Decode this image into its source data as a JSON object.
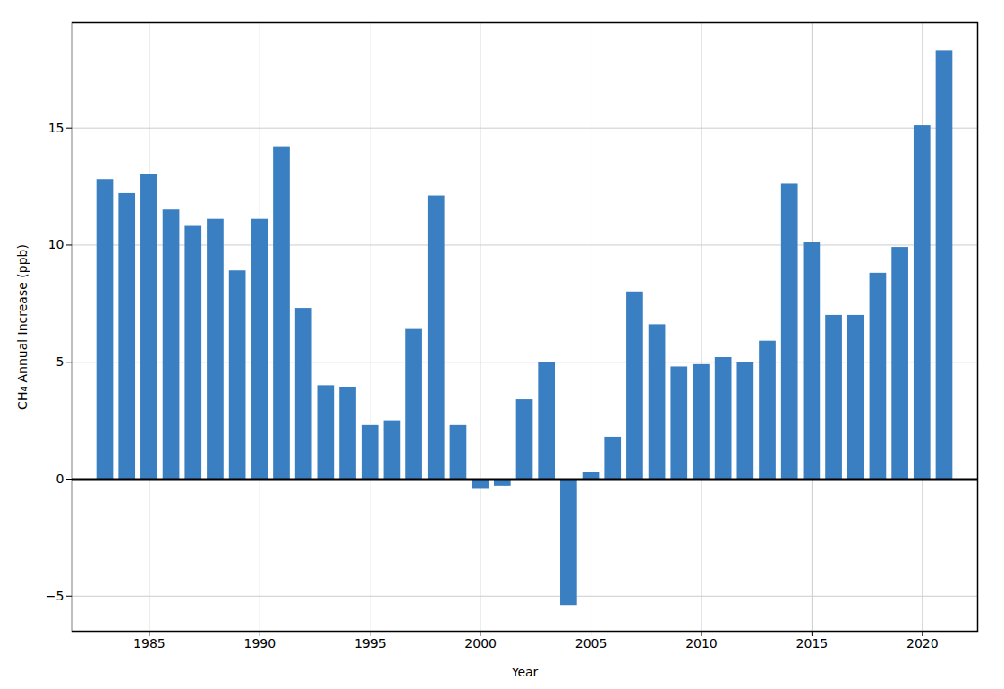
{
  "chart_data": {
    "type": "bar",
    "x": [
      1983,
      1984,
      1985,
      1986,
      1987,
      1988,
      1989,
      1990,
      1991,
      1992,
      1993,
      1994,
      1995,
      1996,
      1997,
      1998,
      1999,
      2000,
      2001,
      2002,
      2003,
      2004,
      2005,
      2006,
      2007,
      2008,
      2009,
      2010,
      2011,
      2012,
      2013,
      2014,
      2015,
      2016,
      2017,
      2018,
      2019,
      2020,
      2021
    ],
    "values": [
      12.8,
      12.2,
      13.0,
      11.5,
      10.8,
      11.1,
      8.9,
      11.1,
      14.2,
      7.3,
      4.0,
      3.9,
      2.3,
      2.5,
      6.4,
      12.1,
      2.3,
      -0.4,
      -0.3,
      3.4,
      5.0,
      -5.4,
      0.3,
      1.8,
      8.0,
      6.6,
      4.8,
      4.9,
      5.2,
      5.0,
      5.9,
      12.6,
      10.1,
      7.0,
      7.0,
      8.8,
      9.9,
      15.1,
      18.3
    ],
    "color": "#3a7fc1",
    "xlabel": "Year",
    "ylabel": "CH₄ Annual Increase (ppb)",
    "xlim": [
      1981.5,
      2022.5
    ],
    "ylim": [
      -6.5,
      19.5
    ],
    "xticks": [
      1985,
      1990,
      1995,
      2000,
      2005,
      2010,
      2015,
      2020
    ],
    "yticks": [
      -5,
      0,
      5,
      10,
      15
    ],
    "grid": true
  }
}
